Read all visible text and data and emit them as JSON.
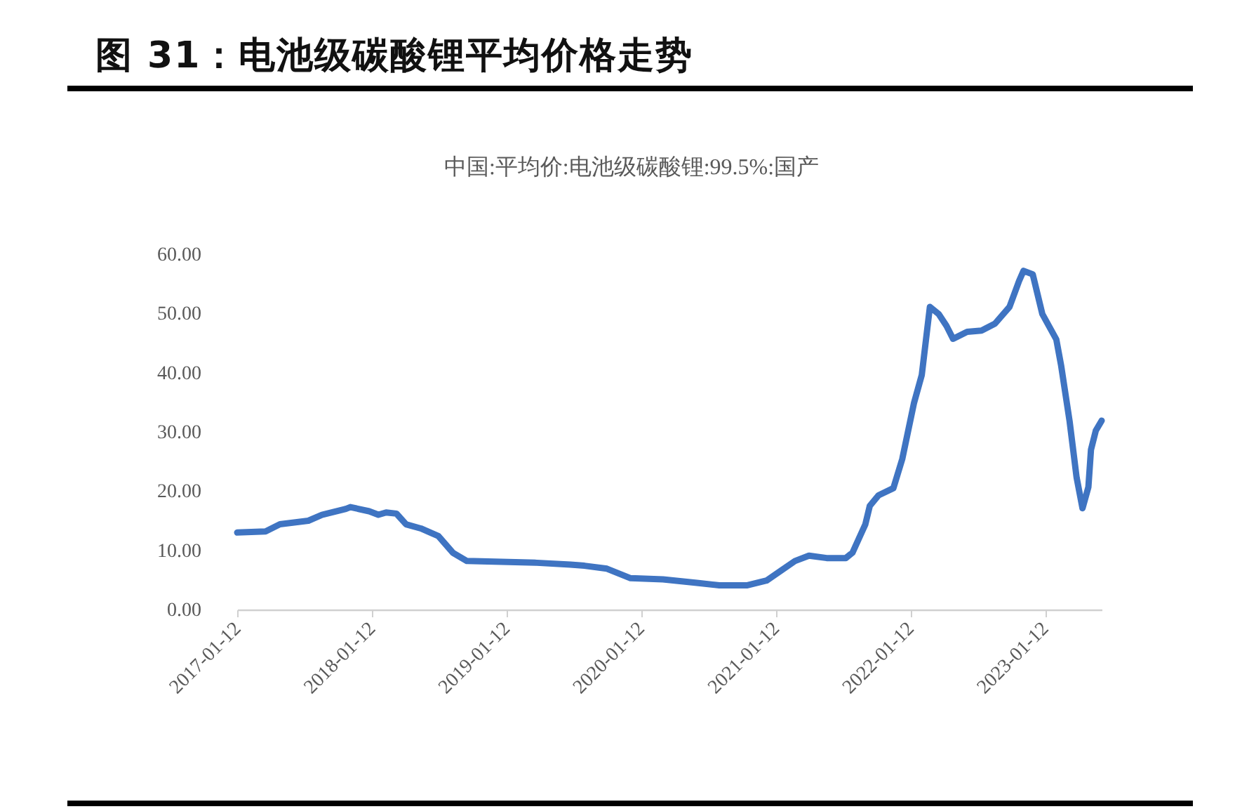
{
  "chart_data": {
    "type": "line",
    "title": "图 31：电池级碳酸锂平均价格走势",
    "subtitle": "中国:平均价:电池级碳酸锂:99.5%:国产",
    "x": [
      "2017-01-12",
      "2017-03-30",
      "2017-05-08",
      "2017-07-24",
      "2017-08-30",
      "2017-11-03",
      "2017-11-15",
      "2018-01-05",
      "2018-01-30",
      "2018-02-20",
      "2018-03-20",
      "2018-04-15",
      "2018-05-25",
      "2018-07-12",
      "2018-08-20",
      "2018-09-27",
      "2019-04-05",
      "2019-07-05",
      "2019-08-12",
      "2019-10-12",
      "2019-12-15",
      "2020-03-12",
      "2020-06-12",
      "2020-08-12",
      "2020-10-27",
      "2020-12-18",
      "2021-01-27",
      "2021-03-05",
      "2021-04-12",
      "2021-05-30",
      "2021-07-21",
      "2021-08-08",
      "2021-09-12",
      "2021-09-24",
      "2021-10-18",
      "2021-11-27",
      "2021-12-21",
      "2022-01-22",
      "2022-02-12",
      "2022-03-06",
      "2022-03-30",
      "2022-04-20",
      "2022-05-08",
      "2022-06-15",
      "2022-07-24",
      "2022-08-30",
      "2022-10-08",
      "2022-11-03",
      "2022-11-15",
      "2022-12-10",
      "2023-01-05",
      "2023-02-12",
      "2023-02-25",
      "2023-03-20",
      "2023-04-08",
      "2023-04-24",
      "2023-05-10",
      "2023-05-17",
      "2023-05-30",
      "2023-06-15"
    ],
    "series": [
      {
        "color": "#3f74c2",
        "values": [
          13.0,
          13.2,
          14.4,
          15.0,
          16.0,
          17.0,
          17.3,
          16.6,
          16.0,
          16.4,
          16.2,
          14.4,
          13.7,
          12.4,
          9.6,
          8.2,
          7.9,
          7.6,
          7.4,
          6.9,
          5.3,
          5.1,
          4.5,
          4.1,
          4.1,
          4.9,
          6.6,
          8.2,
          9.1,
          8.7,
          8.7,
          9.6,
          14.4,
          17.5,
          19.3,
          20.5,
          25.4,
          34.9,
          39.6,
          51.1,
          49.9,
          47.9,
          45.7,
          46.9,
          47.1,
          48.3,
          51.1,
          55.5,
          57.2,
          56.6,
          49.9,
          45.6,
          41.2,
          31.8,
          22.3,
          17.1,
          20.7,
          27.0,
          30.2,
          31.9
        ]
      }
    ],
    "xlim": [
      "2017-01-12",
      "2023-06-15"
    ],
    "xticks": [
      "2017-01-12",
      "2018-01-12",
      "2019-01-12",
      "2020-01-12",
      "2021-01-12",
      "2022-01-12",
      "2023-01-12"
    ],
    "ylim": [
      0,
      60
    ],
    "yticks": [
      {
        "value": 0,
        "label": "0.00"
      },
      {
        "value": 10,
        "label": "10.00"
      },
      {
        "value": 20,
        "label": "20.00"
      },
      {
        "value": 30,
        "label": "30.00"
      },
      {
        "value": 40,
        "label": "40.00"
      },
      {
        "value": 50,
        "label": "50.00"
      },
      {
        "value": 60,
        "label": "60.00"
      }
    ],
    "grid": false
  }
}
